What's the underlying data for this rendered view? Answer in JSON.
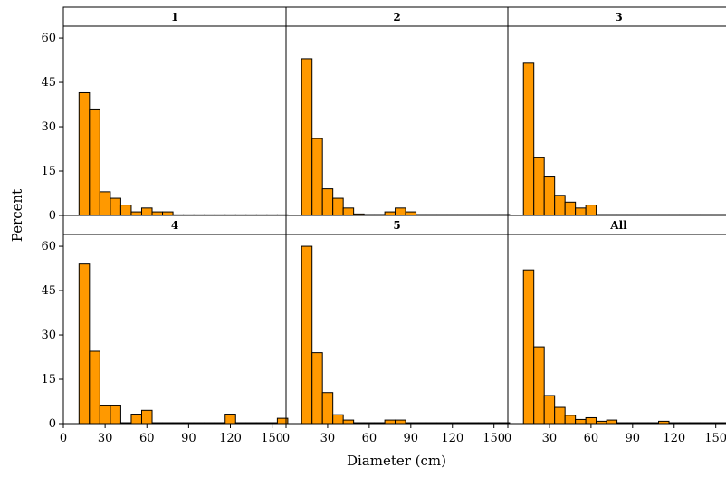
{
  "chart_data": {
    "type": "bar",
    "subtype": "faceted-histogram",
    "xlabel": "Diameter (cm)",
    "ylabel": "Percent",
    "xlim": [
      0,
      160
    ],
    "ylim": [
      0,
      64
    ],
    "xticks": [
      0,
      30,
      60,
      90,
      120,
      150
    ],
    "yticks": [
      0,
      15,
      30,
      45,
      60
    ],
    "bin_width": 7.5,
    "bin_start": 11.25,
    "bar_color": "#ff9900",
    "bar_edge_color": "#000000",
    "panels": [
      {
        "label": "1",
        "values": [
          41.5,
          36,
          8,
          5.8,
          3.5,
          1.2,
          2.5,
          1.2,
          1.2,
          0.2,
          0.2,
          0.2,
          0.2,
          0.2,
          0.2,
          0.2,
          0.2,
          0.2,
          0.2,
          0.2
        ]
      },
      {
        "label": "2",
        "values": [
          53,
          26,
          9,
          5.8,
          2.5,
          0.5,
          0.3,
          0.3,
          1.2,
          2.5,
          1.2,
          0.3,
          0.3,
          0.3,
          0.3,
          0.3,
          0.3,
          0.3,
          0.3,
          0.3
        ]
      },
      {
        "label": "3",
        "values": [
          51.5,
          19.5,
          13,
          6.8,
          4.5,
          2.5,
          3.5,
          0.3,
          0.3,
          0.3,
          0.3,
          0.3,
          0.3,
          0.3,
          0.3,
          0.3,
          0.3,
          0.3,
          0.3,
          0.3
        ]
      },
      {
        "label": "4",
        "values": [
          54,
          24.5,
          6,
          6,
          0.3,
          3.2,
          4.5,
          0.3,
          0.3,
          0.3,
          0.3,
          0.3,
          0.3,
          0.3,
          3.2,
          0.3,
          0.3,
          0.3,
          0.3,
          1.8
        ]
      },
      {
        "label": "5",
        "values": [
          60,
          24,
          10.5,
          3,
          1.2,
          0.3,
          0.3,
          0.3,
          1.2,
          1.2,
          0.3,
          0.3,
          0.3,
          0.3,
          0.3,
          0.3,
          0.3,
          0.3,
          0.3,
          0.3
        ]
      },
      {
        "label": "All",
        "values": [
          52,
          26,
          9.5,
          5.5,
          2.8,
          1.4,
          2,
          0.8,
          1.2,
          0.3,
          0.3,
          0.3,
          0.3,
          0.8,
          0.3,
          0.3,
          0.3,
          0.3,
          0.3,
          0.3
        ]
      }
    ]
  }
}
